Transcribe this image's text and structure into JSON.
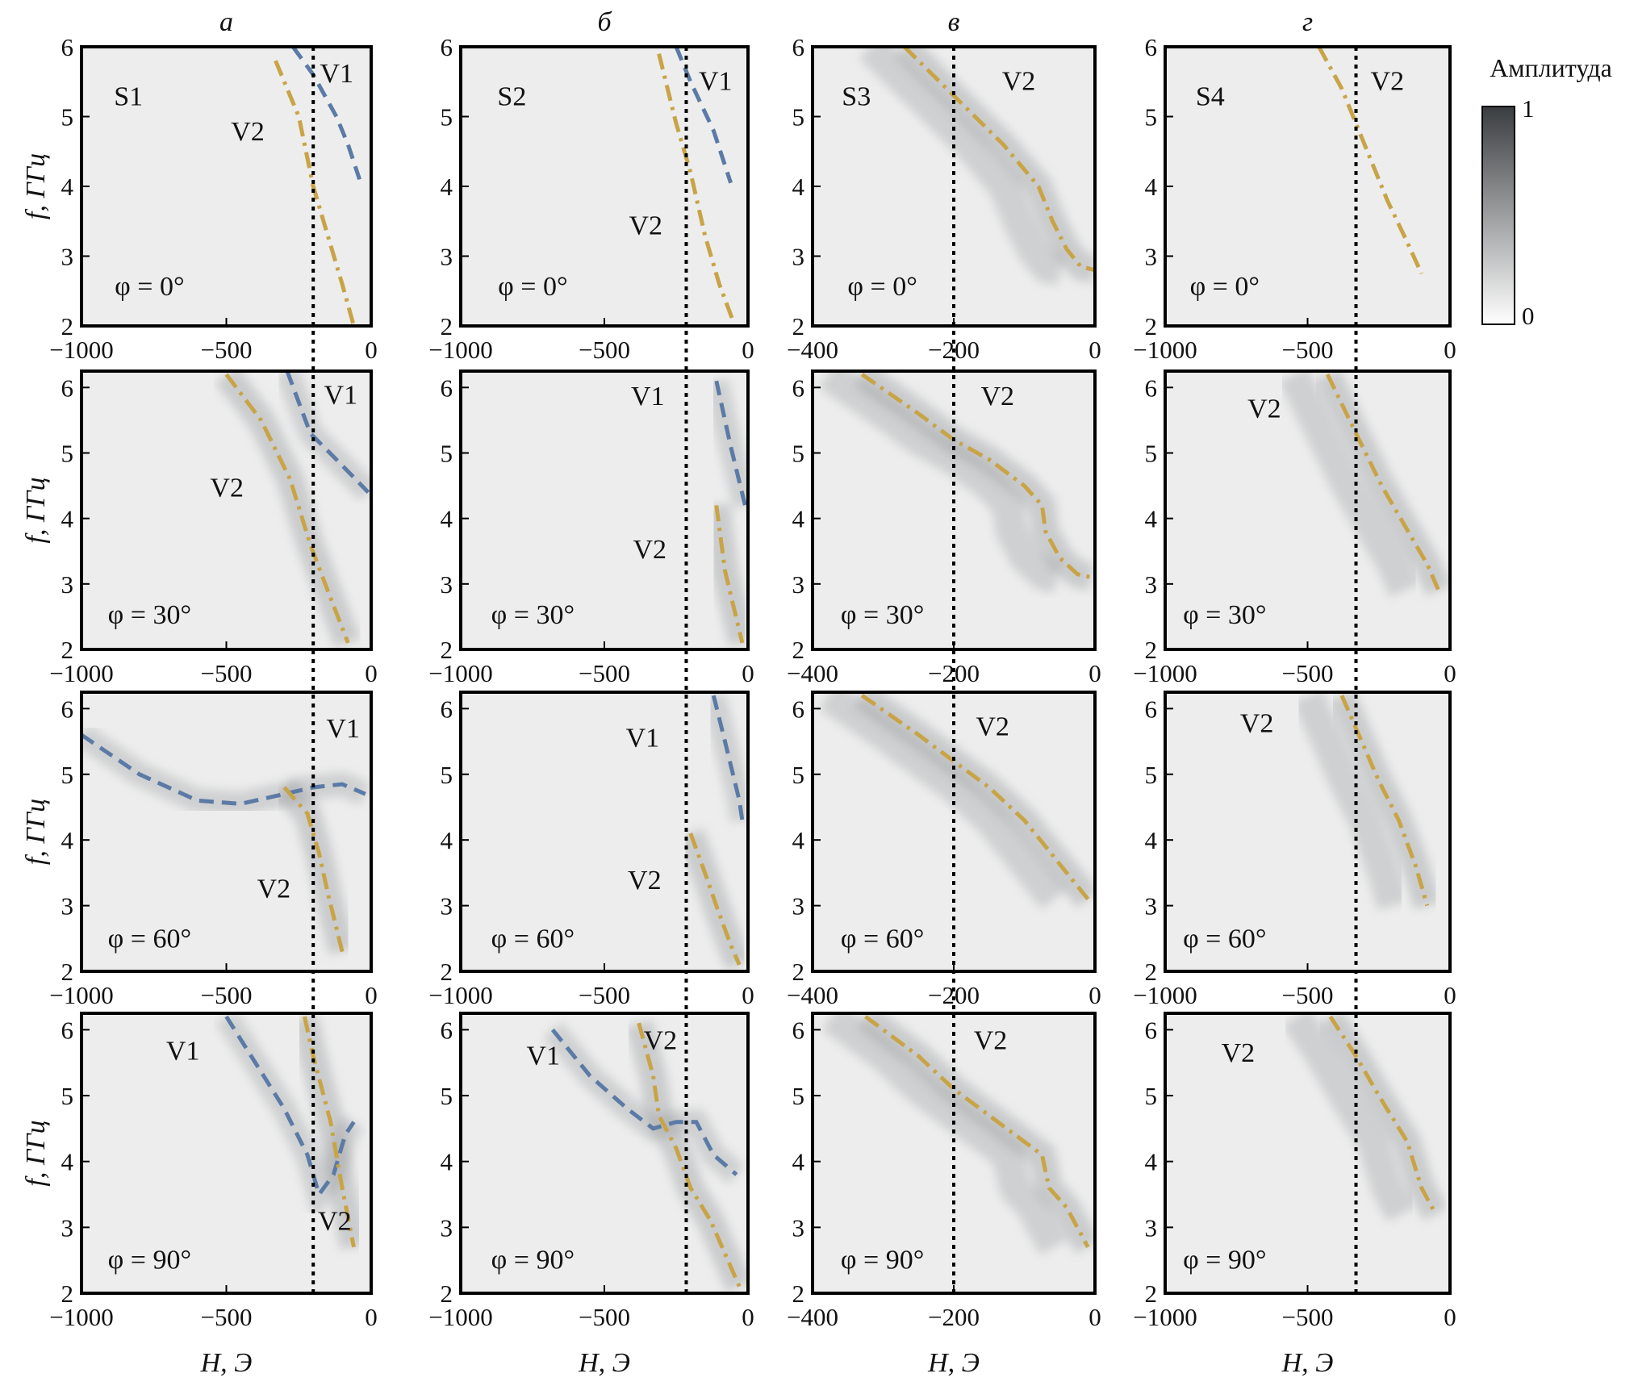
{
  "column_titles": [
    "а",
    "б",
    "в",
    "г"
  ],
  "ylabel": "f, ГГц",
  "xlabel": "H, Э",
  "colorbar": {
    "label": "Амплитуда",
    "max_label": "1",
    "min_label": "0",
    "range": [
      0,
      1
    ],
    "colors": [
      "#ffffff",
      "#3a3d40"
    ]
  },
  "colors": {
    "V1": "#5b7aa6",
    "V2": "#c8a447",
    "field_marker": "#000000"
  },
  "chart_data": {
    "type": "heatmap",
    "grid": false,
    "panels": [
      {
        "sample": "S1",
        "phi": "φ = 0°",
        "xlim": [
          -1000,
          0
        ],
        "ylim": [
          2,
          6
        ],
        "xticks": [
          "−1000",
          "−500",
          "0"
        ],
        "yticks": [
          "2",
          "3",
          "4",
          "5",
          "6"
        ],
        "vline": -200,
        "v1": [
          [
            -270,
            6
          ],
          [
            -200,
            5.6
          ],
          [
            -120,
            5.0
          ],
          [
            -80,
            4.6
          ],
          [
            -40,
            4.1
          ]
        ],
        "v2": [
          [
            -330,
            5.8
          ],
          [
            -250,
            5
          ],
          [
            -200,
            4.0
          ],
          [
            -150,
            3.3
          ],
          [
            -100,
            2.6
          ],
          [
            -60,
            2
          ]
        ],
        "labels": [
          "V1",
          "V2"
        ]
      },
      {
        "sample": "S2",
        "phi": "φ = 0°",
        "xlim": [
          -1000,
          0
        ],
        "ylim": [
          2,
          6
        ],
        "xticks": [
          "−1000",
          "−500",
          "0"
        ],
        "yticks": [
          "2",
          "3",
          "4",
          "5",
          "6"
        ],
        "vline": -215,
        "v1": [
          [
            -250,
            6
          ],
          [
            -200,
            5.5
          ],
          [
            -120,
            4.8
          ],
          [
            -60,
            4.05
          ]
        ],
        "v2": [
          [
            -310,
            5.9
          ],
          [
            -250,
            4.9
          ],
          [
            -200,
            4.2
          ],
          [
            -150,
            3.3
          ],
          [
            -100,
            2.6
          ],
          [
            -50,
            2.05
          ]
        ],
        "labels": [
          "V1",
          "V2"
        ]
      },
      {
        "sample": "S3",
        "phi": "φ = 0°",
        "xlim": [
          -400,
          0
        ],
        "ylim": [
          2,
          6
        ],
        "xticks": [
          "−400",
          "−200",
          "0"
        ],
        "yticks": [
          "2",
          "3",
          "4",
          "5",
          "6"
        ],
        "vline": -200,
        "v1": [],
        "v2": [
          [
            -270,
            6
          ],
          [
            -200,
            5.3
          ],
          [
            -130,
            4.6
          ],
          [
            -80,
            4.0
          ],
          [
            -60,
            3.5
          ],
          [
            -40,
            3.1
          ],
          [
            -20,
            2.85
          ],
          [
            0,
            2.8
          ]
        ],
        "labels": [
          "V2"
        ]
      },
      {
        "sample": "S4",
        "phi": "φ = 0°",
        "xlim": [
          -1000,
          0
        ],
        "ylim": [
          2,
          6
        ],
        "xticks": [
          "−1000",
          "−500",
          "0"
        ],
        "yticks": [
          "2",
          "3",
          "4",
          "5",
          "6"
        ],
        "vline": -330,
        "v1": [],
        "v2": [
          [
            -460,
            6
          ],
          [
            -380,
            5.4
          ],
          [
            -300,
            4.6
          ],
          [
            -220,
            3.8
          ],
          [
            -150,
            3.2
          ],
          [
            -100,
            2.75
          ]
        ],
        "labels": [
          "V2"
        ]
      },
      {
        "phi": "φ = 30°",
        "xlim": [
          -1000,
          0
        ],
        "ylim": [
          2,
          6.25
        ],
        "xticks": [
          "−1000",
          "−500",
          "0"
        ],
        "yticks": [
          "2",
          "3",
          "4",
          "5",
          "6"
        ],
        "vline": -200,
        "v1": [
          [
            -290,
            6.25
          ],
          [
            -210,
            5.3
          ],
          [
            -120,
            4.9
          ],
          [
            -10,
            4.4
          ]
        ],
        "v2": [
          [
            -500,
            6.2
          ],
          [
            -380,
            5.5
          ],
          [
            -280,
            4.6
          ],
          [
            -210,
            3.6
          ],
          [
            -150,
            2.9
          ],
          [
            -80,
            2.1
          ]
        ],
        "labels": [
          "V1",
          "V2"
        ]
      },
      {
        "phi": "φ = 30°",
        "xlim": [
          -1000,
          0
        ],
        "ylim": [
          2,
          6.25
        ],
        "xticks": [
          "−1000",
          "−500",
          "0"
        ],
        "yticks": [
          "2",
          "3",
          "4",
          "5",
          "6"
        ],
        "vline": -215,
        "v1": [
          [
            -110,
            6.1
          ],
          [
            -60,
            5.1
          ],
          [
            -10,
            4.2
          ]
        ],
        "v2": [
          [
            -110,
            4.2
          ],
          [
            -80,
            3.2
          ],
          [
            -20,
            2.1
          ]
        ],
        "labels": [
          "V1",
          "V2"
        ]
      },
      {
        "phi": "φ = 30°",
        "xlim": [
          -400,
          0
        ],
        "ylim": [
          2,
          6.25
        ],
        "xticks": [
          "−400",
          "−200",
          "0"
        ],
        "yticks": [
          "2",
          "3",
          "4",
          "5",
          "6"
        ],
        "vline": -200,
        "v1": [],
        "v2": [
          [
            -330,
            6.2
          ],
          [
            -250,
            5.6
          ],
          [
            -200,
            5.2
          ],
          [
            -150,
            4.9
          ],
          [
            -100,
            4.5
          ],
          [
            -75,
            4.2
          ],
          [
            -70,
            3.8
          ],
          [
            -50,
            3.4
          ],
          [
            -25,
            3.15
          ],
          [
            -5,
            3.1
          ]
        ],
        "labels": [
          "V2"
        ]
      },
      {
        "phi": "φ = 30°",
        "xlim": [
          -1000,
          0
        ],
        "ylim": [
          2,
          6.25
        ],
        "xticks": [
          "−1000",
          "−500",
          "0"
        ],
        "yticks": [
          "2",
          "3",
          "4",
          "5",
          "6"
        ],
        "vline": -330,
        "v1": [],
        "v2": [
          [
            -430,
            6.2
          ],
          [
            -330,
            5.3
          ],
          [
            -240,
            4.5
          ],
          [
            -160,
            3.9
          ],
          [
            -80,
            3.3
          ],
          [
            -40,
            2.9
          ]
        ],
        "labels": [
          "V2"
        ]
      },
      {
        "phi": "φ = 60°",
        "xlim": [
          -1000,
          0
        ],
        "ylim": [
          2,
          6.25
        ],
        "xticks": [
          "−1000",
          "−500",
          "0"
        ],
        "yticks": [
          "2",
          "3",
          "4",
          "5",
          "6"
        ],
        "vline": -200,
        "v1": [
          [
            -1000,
            5.6
          ],
          [
            -800,
            5.0
          ],
          [
            -600,
            4.6
          ],
          [
            -450,
            4.55
          ],
          [
            -300,
            4.7
          ],
          [
            -200,
            4.8
          ],
          [
            -100,
            4.85
          ],
          [
            -20,
            4.7
          ]
        ],
        "v2": [
          [
            -300,
            4.8
          ],
          [
            -220,
            4.4
          ],
          [
            -180,
            3.8
          ],
          [
            -150,
            3.2
          ],
          [
            -100,
            2.3
          ]
        ],
        "labels": [
          "V1",
          "V2"
        ]
      },
      {
        "phi": "φ = 60°",
        "xlim": [
          -1000,
          0
        ],
        "ylim": [
          2,
          6.25
        ],
        "xticks": [
          "−1000",
          "−500",
          "0"
        ],
        "yticks": [
          "2",
          "3",
          "4",
          "5",
          "6"
        ],
        "vline": -215,
        "v1": [
          [
            -120,
            6.2
          ],
          [
            -80,
            5.5
          ],
          [
            -30,
            4.6
          ],
          [
            -20,
            4.3
          ]
        ],
        "v2": [
          [
            -200,
            4.1
          ],
          [
            -150,
            3.5
          ],
          [
            -110,
            3.0
          ],
          [
            -60,
            2.4
          ],
          [
            -30,
            2.1
          ]
        ],
        "labels": [
          "V1",
          "V2"
        ]
      },
      {
        "phi": "φ = 60°",
        "xlim": [
          -400,
          0
        ],
        "ylim": [
          2,
          6.25
        ],
        "xticks": [
          "−400",
          "−200",
          "0"
        ],
        "yticks": [
          "2",
          "3",
          "4",
          "5",
          "6"
        ],
        "vline": -200,
        "v1": [],
        "v2": [
          [
            -330,
            6.2
          ],
          [
            -250,
            5.6
          ],
          [
            -200,
            5.2
          ],
          [
            -150,
            4.8
          ],
          [
            -100,
            4.3
          ],
          [
            -70,
            3.9
          ],
          [
            -40,
            3.5
          ],
          [
            -10,
            3.1
          ]
        ],
        "labels": [
          "V2"
        ]
      },
      {
        "phi": "φ = 60°",
        "xlim": [
          -1000,
          0
        ],
        "ylim": [
          2,
          6.25
        ],
        "xticks": [
          "−1000",
          "−500",
          "0"
        ],
        "yticks": [
          "2",
          "3",
          "4",
          "5",
          "6"
        ],
        "vline": -330,
        "v1": [],
        "v2": [
          [
            -380,
            6.2
          ],
          [
            -320,
            5.6
          ],
          [
            -250,
            4.9
          ],
          [
            -180,
            4.3
          ],
          [
            -120,
            3.6
          ],
          [
            -80,
            3.0
          ]
        ],
        "labels": [
          "V2"
        ]
      },
      {
        "phi": "φ = 90°",
        "xlim": [
          -1000,
          0
        ],
        "ylim": [
          2,
          6.25
        ],
        "xticks": [
          "−1000",
          "−500",
          "0"
        ],
        "yticks": [
          "2",
          "3",
          "4",
          "5",
          "6"
        ],
        "vline": -200,
        "v1": [
          [
            -500,
            6.2
          ],
          [
            -400,
            5.5
          ],
          [
            -300,
            4.8
          ],
          [
            -220,
            4.1
          ],
          [
            -180,
            3.5
          ],
          [
            -130,
            3.8
          ],
          [
            -90,
            4.4
          ],
          [
            -60,
            4.6
          ]
        ],
        "v2": [
          [
            -230,
            6.2
          ],
          [
            -200,
            5.6
          ],
          [
            -140,
            4.6
          ],
          [
            -100,
            3.6
          ],
          [
            -60,
            2.7
          ]
        ],
        "labels": [
          "V1",
          "V2"
        ]
      },
      {
        "phi": "φ = 90°",
        "xlim": [
          -1000,
          0
        ],
        "ylim": [
          2,
          6.25
        ],
        "xticks": [
          "−1000",
          "−500",
          "0"
        ],
        "yticks": [
          "2",
          "3",
          "4",
          "5",
          "6"
        ],
        "vline": -215,
        "v1": [
          [
            -680,
            6.0
          ],
          [
            -550,
            5.3
          ],
          [
            -420,
            4.8
          ],
          [
            -330,
            4.5
          ],
          [
            -250,
            4.6
          ],
          [
            -180,
            4.6
          ],
          [
            -120,
            4.1
          ],
          [
            -40,
            3.8
          ]
        ],
        "v2": [
          [
            -380,
            6.1
          ],
          [
            -330,
            5.3
          ],
          [
            -310,
            4.7
          ],
          [
            -250,
            4.2
          ],
          [
            -200,
            3.6
          ],
          [
            -130,
            3.1
          ],
          [
            -80,
            2.6
          ],
          [
            -30,
            2.1
          ]
        ],
        "labels": [
          "V1",
          "V2"
        ]
      },
      {
        "phi": "φ = 90°",
        "xlim": [
          -400,
          0
        ],
        "ylim": [
          2,
          6.25
        ],
        "xticks": [
          "−400",
          "−200",
          "0"
        ],
        "yticks": [
          "2",
          "3",
          "4",
          "5",
          "6"
        ],
        "vline": -200,
        "v1": [],
        "v2": [
          [
            -325,
            6.2
          ],
          [
            -250,
            5.6
          ],
          [
            -200,
            5.1
          ],
          [
            -150,
            4.7
          ],
          [
            -100,
            4.3
          ],
          [
            -75,
            4.1
          ],
          [
            -65,
            3.6
          ],
          [
            -40,
            3.3
          ],
          [
            -10,
            2.7
          ]
        ],
        "labels": [
          "V2"
        ]
      },
      {
        "phi": "φ = 90°",
        "xlim": [
          -1000,
          0
        ],
        "ylim": [
          2,
          6.25
        ],
        "xticks": [
          "−1000",
          "−500",
          "0"
        ],
        "yticks": [
          "2",
          "3",
          "4",
          "5",
          "6"
        ],
        "vline": -330,
        "v1": [],
        "v2": [
          [
            -420,
            6.2
          ],
          [
            -330,
            5.6
          ],
          [
            -250,
            5.0
          ],
          [
            -150,
            4.3
          ],
          [
            -100,
            3.6
          ],
          [
            -50,
            3.2
          ]
        ],
        "labels": [
          "V2"
        ]
      }
    ]
  }
}
